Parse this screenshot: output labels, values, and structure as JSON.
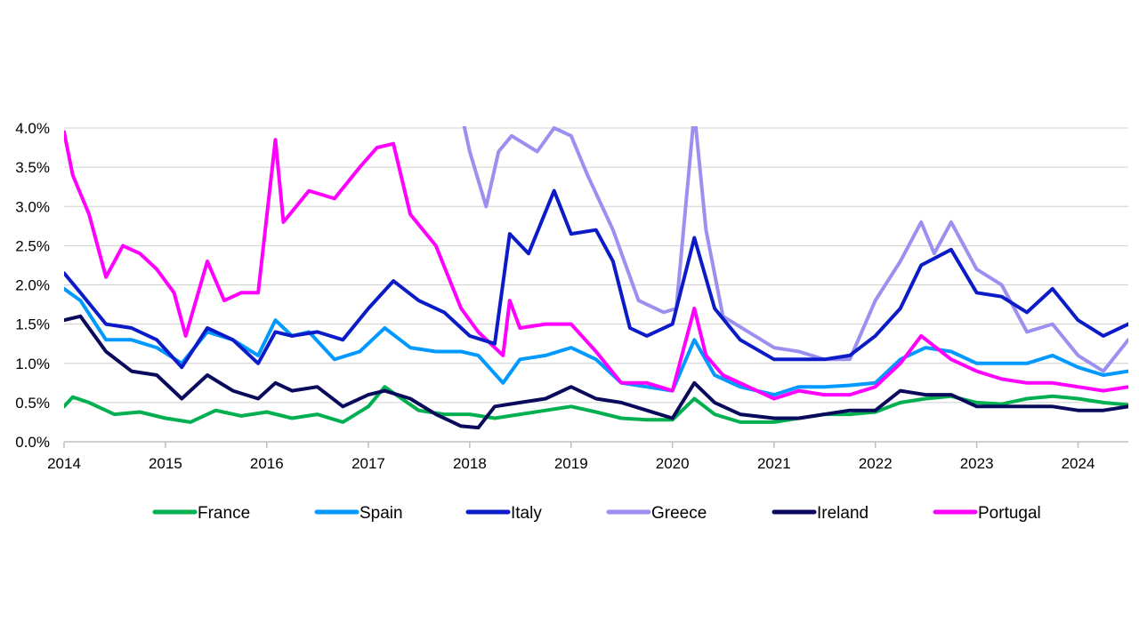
{
  "chart_data": {
    "type": "line",
    "title": "",
    "xlabel": "",
    "ylabel": "",
    "x_ticks": [
      "2014",
      "2015",
      "2016",
      "2017",
      "2018",
      "2019",
      "2020",
      "2021",
      "2022",
      "2023",
      "2024"
    ],
    "y_ticks": [
      "0.0%",
      "0.5%",
      "1.0%",
      "1.5%",
      "2.0%",
      "2.5%",
      "3.0%",
      "3.5%",
      "4.0%"
    ],
    "xlim": [
      "2014-01-01",
      "2024-06-30"
    ],
    "ylim": [
      0,
      4.0
    ],
    "y_unit": "%",
    "grid": "horizontal",
    "legend_position": "bottom",
    "series": [
      {
        "name": "France",
        "color": "#00b050",
        "points": [
          [
            "2014-01-01",
            0.45
          ],
          [
            "2014-02-01",
            0.57
          ],
          [
            "2014-04-01",
            0.5
          ],
          [
            "2014-07-01",
            0.35
          ],
          [
            "2014-10-01",
            0.38
          ],
          [
            "2015-01-01",
            0.3
          ],
          [
            "2015-04-01",
            0.25
          ],
          [
            "2015-07-01",
            0.4
          ],
          [
            "2015-10-01",
            0.33
          ],
          [
            "2016-01-01",
            0.38
          ],
          [
            "2016-04-01",
            0.3
          ],
          [
            "2016-07-01",
            0.35
          ],
          [
            "2016-10-01",
            0.25
          ],
          [
            "2017-01-01",
            0.45
          ],
          [
            "2017-03-01",
            0.7
          ],
          [
            "2017-05-01",
            0.55
          ],
          [
            "2017-07-01",
            0.4
          ],
          [
            "2017-10-01",
            0.35
          ],
          [
            "2018-01-01",
            0.35
          ],
          [
            "2018-04-01",
            0.3
          ],
          [
            "2018-07-01",
            0.35
          ],
          [
            "2018-10-01",
            0.4
          ],
          [
            "2019-01-01",
            0.45
          ],
          [
            "2019-04-01",
            0.38
          ],
          [
            "2019-07-01",
            0.3
          ],
          [
            "2019-10-01",
            0.28
          ],
          [
            "2020-01-01",
            0.28
          ],
          [
            "2020-03-20",
            0.55
          ],
          [
            "2020-06-01",
            0.35
          ],
          [
            "2020-09-01",
            0.25
          ],
          [
            "2021-01-01",
            0.25
          ],
          [
            "2021-04-01",
            0.3
          ],
          [
            "2021-07-01",
            0.35
          ],
          [
            "2021-10-01",
            0.35
          ],
          [
            "2022-01-01",
            0.38
          ],
          [
            "2022-04-01",
            0.5
          ],
          [
            "2022-07-01",
            0.55
          ],
          [
            "2022-10-01",
            0.58
          ],
          [
            "2023-01-01",
            0.5
          ],
          [
            "2023-04-01",
            0.48
          ],
          [
            "2023-07-01",
            0.55
          ],
          [
            "2023-10-01",
            0.58
          ],
          [
            "2024-01-01",
            0.55
          ],
          [
            "2024-04-01",
            0.5
          ],
          [
            "2024-06-30",
            0.47
          ]
        ]
      },
      {
        "name": "Spain",
        "color": "#0099ff",
        "points": [
          [
            "2014-01-01",
            1.95
          ],
          [
            "2014-03-01",
            1.8
          ],
          [
            "2014-06-01",
            1.3
          ],
          [
            "2014-09-01",
            1.3
          ],
          [
            "2014-12-01",
            1.2
          ],
          [
            "2015-03-01",
            1.0
          ],
          [
            "2015-06-01",
            1.4
          ],
          [
            "2015-09-01",
            1.3
          ],
          [
            "2015-12-01",
            1.1
          ],
          [
            "2016-02-01",
            1.55
          ],
          [
            "2016-04-01",
            1.35
          ],
          [
            "2016-06-01",
            1.4
          ],
          [
            "2016-09-01",
            1.05
          ],
          [
            "2016-12-01",
            1.15
          ],
          [
            "2017-03-01",
            1.45
          ],
          [
            "2017-06-01",
            1.2
          ],
          [
            "2017-09-01",
            1.15
          ],
          [
            "2017-12-01",
            1.15
          ],
          [
            "2018-02-01",
            1.1
          ],
          [
            "2018-05-01",
            0.75
          ],
          [
            "2018-07-01",
            1.05
          ],
          [
            "2018-10-01",
            1.1
          ],
          [
            "2019-01-01",
            1.2
          ],
          [
            "2019-04-01",
            1.05
          ],
          [
            "2019-07-01",
            0.75
          ],
          [
            "2019-10-01",
            0.7
          ],
          [
            "2020-01-01",
            0.65
          ],
          [
            "2020-03-20",
            1.3
          ],
          [
            "2020-06-01",
            0.85
          ],
          [
            "2020-09-01",
            0.7
          ],
          [
            "2021-01-01",
            0.6
          ],
          [
            "2021-04-01",
            0.7
          ],
          [
            "2021-07-01",
            0.7
          ],
          [
            "2021-10-01",
            0.72
          ],
          [
            "2022-01-01",
            0.75
          ],
          [
            "2022-04-01",
            1.05
          ],
          [
            "2022-07-01",
            1.2
          ],
          [
            "2022-10-01",
            1.15
          ],
          [
            "2023-01-01",
            1.0
          ],
          [
            "2023-04-01",
            1.0
          ],
          [
            "2023-07-01",
            1.0
          ],
          [
            "2023-10-01",
            1.1
          ],
          [
            "2024-01-01",
            0.95
          ],
          [
            "2024-04-01",
            0.85
          ],
          [
            "2024-06-30",
            0.9
          ]
        ]
      },
      {
        "name": "Italy",
        "color": "#0b1bc7",
        "points": [
          [
            "2014-01-01",
            2.15
          ],
          [
            "2014-03-01",
            1.9
          ],
          [
            "2014-06-01",
            1.5
          ],
          [
            "2014-09-01",
            1.45
          ],
          [
            "2014-12-01",
            1.3
          ],
          [
            "2015-03-01",
            0.95
          ],
          [
            "2015-06-01",
            1.45
          ],
          [
            "2015-09-01",
            1.3
          ],
          [
            "2015-12-01",
            1.0
          ],
          [
            "2016-02-01",
            1.4
          ],
          [
            "2016-04-01",
            1.35
          ],
          [
            "2016-07-01",
            1.4
          ],
          [
            "2016-10-01",
            1.3
          ],
          [
            "2017-01-01",
            1.7
          ],
          [
            "2017-04-01",
            2.05
          ],
          [
            "2017-07-01",
            1.8
          ],
          [
            "2017-10-01",
            1.65
          ],
          [
            "2018-01-01",
            1.35
          ],
          [
            "2018-04-01",
            1.25
          ],
          [
            "2018-05-25",
            2.65
          ],
          [
            "2018-08-01",
            2.4
          ],
          [
            "2018-11-01",
            3.2
          ],
          [
            "2019-01-01",
            2.65
          ],
          [
            "2019-04-01",
            2.7
          ],
          [
            "2019-06-01",
            2.3
          ],
          [
            "2019-08-01",
            1.45
          ],
          [
            "2019-10-01",
            1.35
          ],
          [
            "2020-01-01",
            1.5
          ],
          [
            "2020-03-20",
            2.6
          ],
          [
            "2020-06-01",
            1.7
          ],
          [
            "2020-09-01",
            1.3
          ],
          [
            "2021-01-01",
            1.05
          ],
          [
            "2021-04-01",
            1.05
          ],
          [
            "2021-07-01",
            1.05
          ],
          [
            "2021-10-01",
            1.1
          ],
          [
            "2022-01-01",
            1.35
          ],
          [
            "2022-04-01",
            1.7
          ],
          [
            "2022-06-15",
            2.25
          ],
          [
            "2022-10-01",
            2.45
          ],
          [
            "2023-01-01",
            1.9
          ],
          [
            "2023-04-01",
            1.85
          ],
          [
            "2023-07-01",
            1.65
          ],
          [
            "2023-10-01",
            1.95
          ],
          [
            "2024-01-01",
            1.55
          ],
          [
            "2024-04-01",
            1.35
          ],
          [
            "2024-06-30",
            1.5
          ]
        ]
      },
      {
        "name": "Greece",
        "color": "#9b8ff0",
        "points": [
          [
            "2017-12-01",
            4.2
          ],
          [
            "2018-01-01",
            3.7
          ],
          [
            "2018-03-01",
            3.0
          ],
          [
            "2018-04-15",
            3.7
          ],
          [
            "2018-06-01",
            3.9
          ],
          [
            "2018-09-01",
            3.7
          ],
          [
            "2018-11-01",
            4.0
          ],
          [
            "2019-01-01",
            3.9
          ],
          [
            "2019-03-01",
            3.4
          ],
          [
            "2019-06-01",
            2.7
          ],
          [
            "2019-09-01",
            1.8
          ],
          [
            "2019-12-01",
            1.65
          ],
          [
            "2020-01-15",
            1.7
          ],
          [
            "2020-03-20",
            4.2
          ],
          [
            "2020-05-01",
            2.7
          ],
          [
            "2020-07-01",
            1.6
          ],
          [
            "2020-10-01",
            1.4
          ],
          [
            "2021-01-01",
            1.2
          ],
          [
            "2021-04-01",
            1.15
          ],
          [
            "2021-07-01",
            1.05
          ],
          [
            "2021-10-01",
            1.05
          ],
          [
            "2022-01-01",
            1.8
          ],
          [
            "2022-04-01",
            2.3
          ],
          [
            "2022-06-15",
            2.8
          ],
          [
            "2022-08-01",
            2.4
          ],
          [
            "2022-10-01",
            2.8
          ],
          [
            "2023-01-01",
            2.2
          ],
          [
            "2023-04-01",
            2.0
          ],
          [
            "2023-07-01",
            1.4
          ],
          [
            "2023-10-01",
            1.5
          ],
          [
            "2024-01-01",
            1.1
          ],
          [
            "2024-04-01",
            0.9
          ],
          [
            "2024-06-30",
            1.3
          ]
        ]
      },
      {
        "name": "Ireland",
        "color": "#0a0a5c",
        "points": [
          [
            "2014-01-01",
            1.55
          ],
          [
            "2014-03-01",
            1.6
          ],
          [
            "2014-06-01",
            1.15
          ],
          [
            "2014-09-01",
            0.9
          ],
          [
            "2014-12-01",
            0.85
          ],
          [
            "2015-03-01",
            0.55
          ],
          [
            "2015-06-01",
            0.85
          ],
          [
            "2015-09-01",
            0.65
          ],
          [
            "2015-12-01",
            0.55
          ],
          [
            "2016-02-01",
            0.75
          ],
          [
            "2016-04-01",
            0.65
          ],
          [
            "2016-07-01",
            0.7
          ],
          [
            "2016-10-01",
            0.45
          ],
          [
            "2017-01-01",
            0.6
          ],
          [
            "2017-03-01",
            0.65
          ],
          [
            "2017-06-01",
            0.55
          ],
          [
            "2017-09-01",
            0.35
          ],
          [
            "2017-12-01",
            0.2
          ],
          [
            "2018-02-01",
            0.18
          ],
          [
            "2018-04-01",
            0.45
          ],
          [
            "2018-07-01",
            0.5
          ],
          [
            "2018-10-01",
            0.55
          ],
          [
            "2019-01-01",
            0.7
          ],
          [
            "2019-04-01",
            0.55
          ],
          [
            "2019-07-01",
            0.5
          ],
          [
            "2019-10-01",
            0.4
          ],
          [
            "2020-01-01",
            0.3
          ],
          [
            "2020-03-20",
            0.75
          ],
          [
            "2020-06-01",
            0.5
          ],
          [
            "2020-09-01",
            0.35
          ],
          [
            "2021-01-01",
            0.3
          ],
          [
            "2021-04-01",
            0.3
          ],
          [
            "2021-07-01",
            0.35
          ],
          [
            "2021-10-01",
            0.4
          ],
          [
            "2022-01-01",
            0.4
          ],
          [
            "2022-04-01",
            0.65
          ],
          [
            "2022-07-01",
            0.6
          ],
          [
            "2022-10-01",
            0.6
          ],
          [
            "2023-01-01",
            0.45
          ],
          [
            "2023-04-01",
            0.45
          ],
          [
            "2023-07-01",
            0.45
          ],
          [
            "2023-10-01",
            0.45
          ],
          [
            "2024-01-01",
            0.4
          ],
          [
            "2024-04-01",
            0.4
          ],
          [
            "2024-06-30",
            0.45
          ]
        ]
      },
      {
        "name": "Portugal",
        "color": "#ff00ff",
        "points": [
          [
            "2014-01-01",
            3.95
          ],
          [
            "2014-02-01",
            3.4
          ],
          [
            "2014-04-01",
            2.9
          ],
          [
            "2014-06-01",
            2.1
          ],
          [
            "2014-08-01",
            2.5
          ],
          [
            "2014-10-01",
            2.4
          ],
          [
            "2014-12-01",
            2.2
          ],
          [
            "2015-02-01",
            1.9
          ],
          [
            "2015-03-15",
            1.35
          ],
          [
            "2015-06-01",
            2.3
          ],
          [
            "2015-08-01",
            1.8
          ],
          [
            "2015-10-01",
            1.9
          ],
          [
            "2015-12-01",
            1.9
          ],
          [
            "2016-02-01",
            3.85
          ],
          [
            "2016-03-01",
            2.8
          ],
          [
            "2016-06-01",
            3.2
          ],
          [
            "2016-09-01",
            3.1
          ],
          [
            "2016-12-01",
            3.5
          ],
          [
            "2017-02-01",
            3.75
          ],
          [
            "2017-04-01",
            3.8
          ],
          [
            "2017-06-01",
            2.9
          ],
          [
            "2017-09-01",
            2.5
          ],
          [
            "2017-12-01",
            1.7
          ],
          [
            "2018-02-01",
            1.4
          ],
          [
            "2018-05-01",
            1.1
          ],
          [
            "2018-05-25",
            1.8
          ],
          [
            "2018-07-01",
            1.45
          ],
          [
            "2018-10-01",
            1.5
          ],
          [
            "2019-01-01",
            1.5
          ],
          [
            "2019-04-01",
            1.15
          ],
          [
            "2019-07-01",
            0.75
          ],
          [
            "2019-10-01",
            0.75
          ],
          [
            "2020-01-01",
            0.65
          ],
          [
            "2020-03-20",
            1.7
          ],
          [
            "2020-05-01",
            1.1
          ],
          [
            "2020-07-01",
            0.85
          ],
          [
            "2020-10-01",
            0.7
          ],
          [
            "2021-01-01",
            0.55
          ],
          [
            "2021-04-01",
            0.65
          ],
          [
            "2021-07-01",
            0.6
          ],
          [
            "2021-10-01",
            0.6
          ],
          [
            "2022-01-01",
            0.7
          ],
          [
            "2022-04-01",
            1.0
          ],
          [
            "2022-06-15",
            1.35
          ],
          [
            "2022-10-01",
            1.05
          ],
          [
            "2023-01-01",
            0.9
          ],
          [
            "2023-04-01",
            0.8
          ],
          [
            "2023-07-01",
            0.75
          ],
          [
            "2023-10-01",
            0.75
          ],
          [
            "2024-01-01",
            0.7
          ],
          [
            "2024-04-01",
            0.65
          ],
          [
            "2024-06-30",
            0.7
          ]
        ]
      }
    ]
  }
}
